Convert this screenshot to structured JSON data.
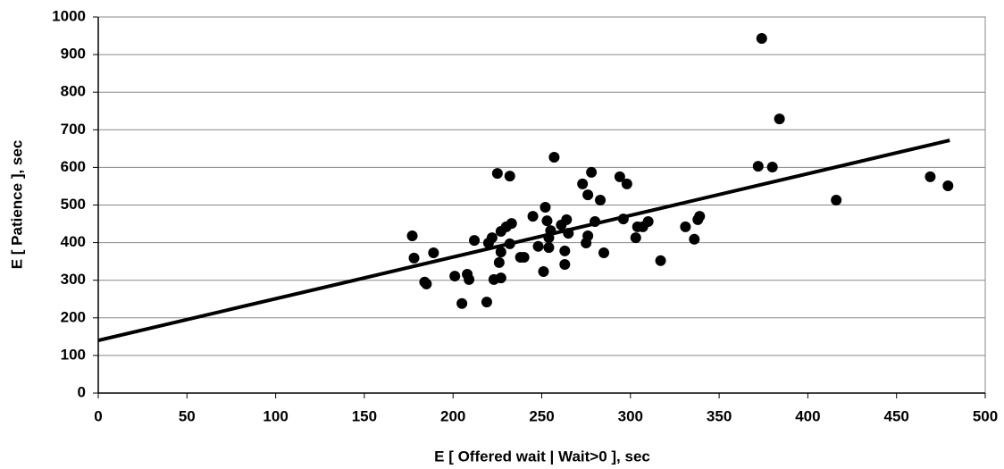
{
  "chart_data": {
    "type": "scatter",
    "x_label": "E [ Offered wait | Wait>0 ], sec",
    "y_label": "E [ Patience ], sec",
    "xlim": [
      0,
      500
    ],
    "xticks": [
      0,
      50,
      100,
      150,
      200,
      250,
      300,
      350,
      400,
      450,
      500
    ],
    "ylim": [
      0,
      1000
    ],
    "yticks": [
      0,
      100,
      200,
      300,
      400,
      500,
      600,
      700,
      800,
      900,
      1000
    ],
    "grid": true,
    "color": "#000000",
    "x": [
      177,
      178,
      184,
      185,
      189,
      201,
      208,
      209,
      205,
      212,
      219,
      220,
      222,
      223,
      225,
      226,
      227,
      227,
      227,
      230,
      232,
      232,
      233,
      238,
      240,
      245,
      248,
      251,
      252,
      253,
      254,
      254,
      255,
      257,
      261,
      263,
      263,
      264,
      265,
      273,
      275,
      276,
      276,
      278,
      280,
      283,
      285,
      294,
      296,
      298,
      303,
      304,
      307,
      310,
      317,
      331,
      336,
      338,
      339,
      372,
      374,
      380,
      384,
      416,
      469,
      479
    ],
    "values": [
      418,
      359,
      295,
      290,
      373,
      311,
      316,
      302,
      238,
      406,
      242,
      399,
      413,
      302,
      584,
      347,
      375,
      430,
      306,
      442,
      577,
      397,
      451,
      361,
      361,
      470,
      390,
      323,
      494,
      458,
      413,
      387,
      432,
      627,
      447,
      378,
      342,
      461,
      425,
      556,
      399,
      418,
      527,
      587,
      456,
      513,
      373,
      575,
      463,
      556,
      413,
      442,
      442,
      456,
      352,
      442,
      409,
      461,
      470,
      603,
      943,
      601,
      729,
      513,
      575,
      551
    ],
    "trend_line": {
      "x": [
        0,
        480
      ],
      "y": [
        140,
        672
      ]
    }
  }
}
